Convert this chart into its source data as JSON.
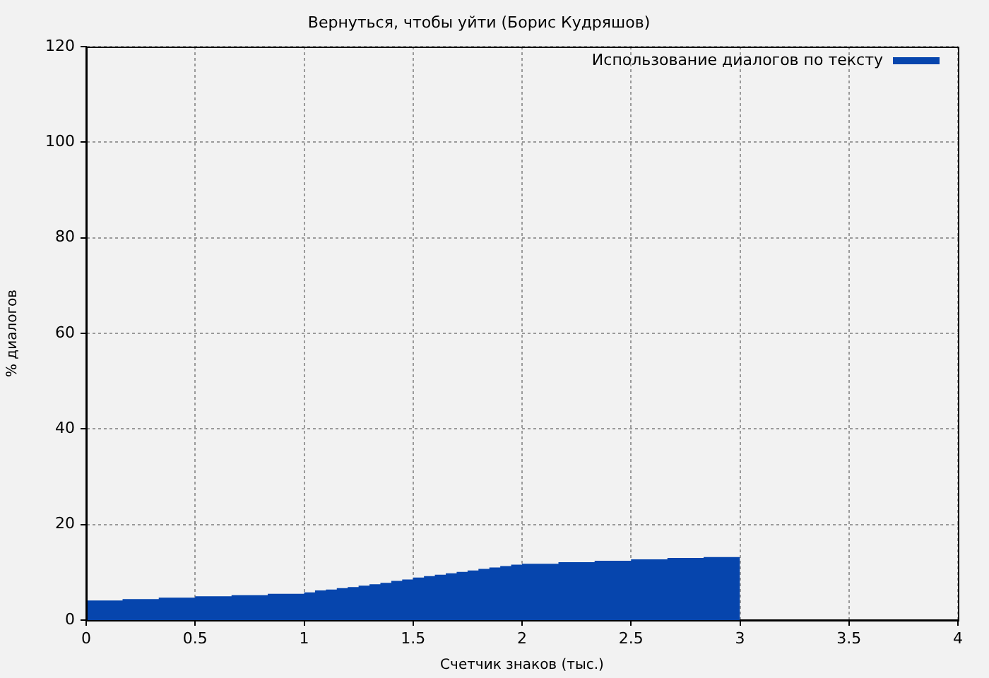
{
  "chart_data": {
    "type": "area",
    "title": "Вернуться, чтобы уйти (Борис Кудряшов)",
    "xlabel": "Счетчик знаков (тыс.)",
    "ylabel": "% диалогов",
    "x": [
      0,
      0.167,
      0.333,
      0.5,
      0.667,
      0.833,
      1,
      1.05,
      1.1,
      1.15,
      1.2,
      1.25,
      1.3,
      1.35,
      1.4,
      1.45,
      1.5,
      1.55,
      1.6,
      1.65,
      1.7,
      1.75,
      1.8,
      1.85,
      1.9,
      1.95,
      2,
      2.167,
      2.333,
      2.5,
      2.667,
      2.833,
      3
    ],
    "series": [
      {
        "name": "Использование диалогов по тексту",
        "color": "#0645ad",
        "values": [
          4.1,
          4.4,
          4.7,
          5.0,
          5.2,
          5.5,
          5.8,
          6.2,
          6.4,
          6.7,
          6.9,
          7.2,
          7.5,
          7.8,
          8.2,
          8.5,
          8.9,
          9.2,
          9.5,
          9.8,
          10.1,
          10.4,
          10.7,
          11.0,
          11.3,
          11.6,
          11.8,
          12.1,
          12.4,
          12.7,
          13.0,
          13.2,
          13.4
        ]
      }
    ],
    "xlim": [
      0,
      4
    ],
    "ylim": [
      0,
      120
    ],
    "xticks": [
      0,
      0.5,
      1,
      1.5,
      2,
      2.5,
      3,
      3.5,
      4
    ],
    "yticks": [
      0,
      20,
      40,
      60,
      80,
      100,
      120
    ],
    "grid": true,
    "legend": "top right",
    "marker": "none"
  }
}
